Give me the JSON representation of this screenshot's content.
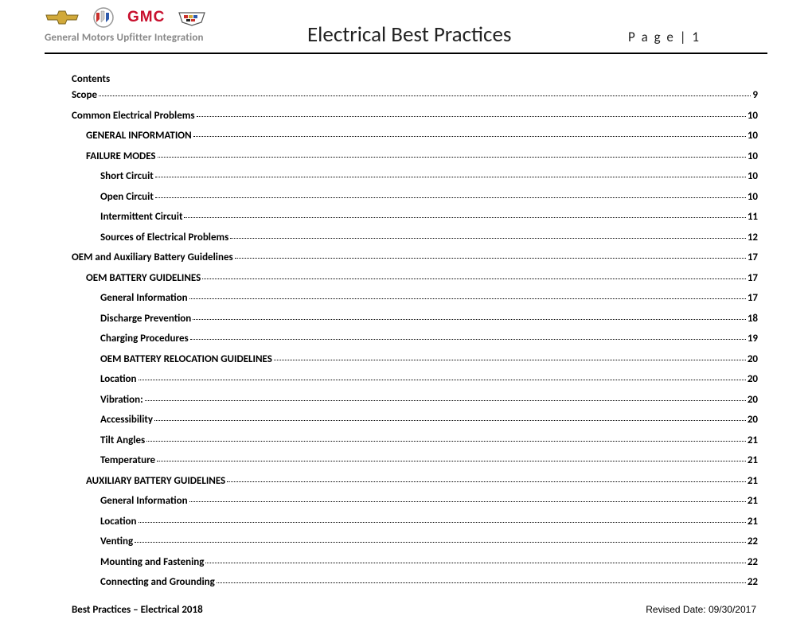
{
  "header": {
    "subtitle": "General Motors Upfitter Integration",
    "title": "Electrical Best Practices",
    "page_label": "P a g e  | 1"
  },
  "contents_label": "Contents",
  "toc": [
    {
      "title": "Scope",
      "page": "9",
      "indent": 0
    },
    {
      "title": "Common Electrical Problems",
      "page": "10",
      "indent": 0
    },
    {
      "title": "GENERAL INFORMATION",
      "page": "10",
      "indent": 1
    },
    {
      "title": "FAILURE MODES",
      "page": "10",
      "indent": 1
    },
    {
      "title": "Short Circuit",
      "page": "10",
      "indent": 2
    },
    {
      "title": "Open Circuit",
      "page": "10",
      "indent": 2
    },
    {
      "title": "Intermittent Circuit",
      "page": "11",
      "indent": 2
    },
    {
      "title": "Sources of Electrical Problems",
      "page": "12",
      "indent": 2
    },
    {
      "title": "OEM and Auxiliary Battery Guidelines",
      "page": "17",
      "indent": 0
    },
    {
      "title": "OEM BATTERY GUIDELINES",
      "page": "17",
      "indent": 1
    },
    {
      "title": "General Information",
      "page": "17",
      "indent": 2
    },
    {
      "title": "Discharge Prevention",
      "page": "18",
      "indent": 2
    },
    {
      "title": "Charging Procedures",
      "page": "19",
      "indent": 2
    },
    {
      "title": "OEM BATTERY RELOCATION GUIDELINES",
      "page": "20",
      "indent": 2
    },
    {
      "title": "Location",
      "page": "20",
      "indent": 2
    },
    {
      "title": "Vibration:",
      "page": "20",
      "indent": 2
    },
    {
      "title": "Accessibility",
      "page": "20",
      "indent": 2
    },
    {
      "title": "Tilt Angles",
      "page": "21",
      "indent": 2
    },
    {
      "title": "Temperature",
      "page": "21",
      "indent": 2
    },
    {
      "title": "AUXILIARY BATTERY GUIDELINES",
      "page": "21",
      "indent": 1
    },
    {
      "title": "General Information",
      "page": "21",
      "indent": 2
    },
    {
      "title": "Location",
      "page": "21",
      "indent": 2
    },
    {
      "title": "Venting",
      "page": "22",
      "indent": 2
    },
    {
      "title": "Mounting and Fastening",
      "page": "22",
      "indent": 2
    },
    {
      "title": "Connecting and Grounding",
      "page": "22",
      "indent": 2
    }
  ],
  "footer": {
    "left": "Best Practices – Electrical 2018",
    "right": "Revised Date: 09/30/2017"
  },
  "logos": {
    "chevrolet": {
      "fill": "#d1a93a",
      "stroke": "#7a6420"
    },
    "buick": {
      "c1": "#c9302c",
      "c2": "#cccccc",
      "c3": "#2e5aac"
    },
    "gmc": {
      "color": "#c8102e",
      "text": "GMC"
    },
    "cadillac": {
      "c": "#333333"
    }
  }
}
